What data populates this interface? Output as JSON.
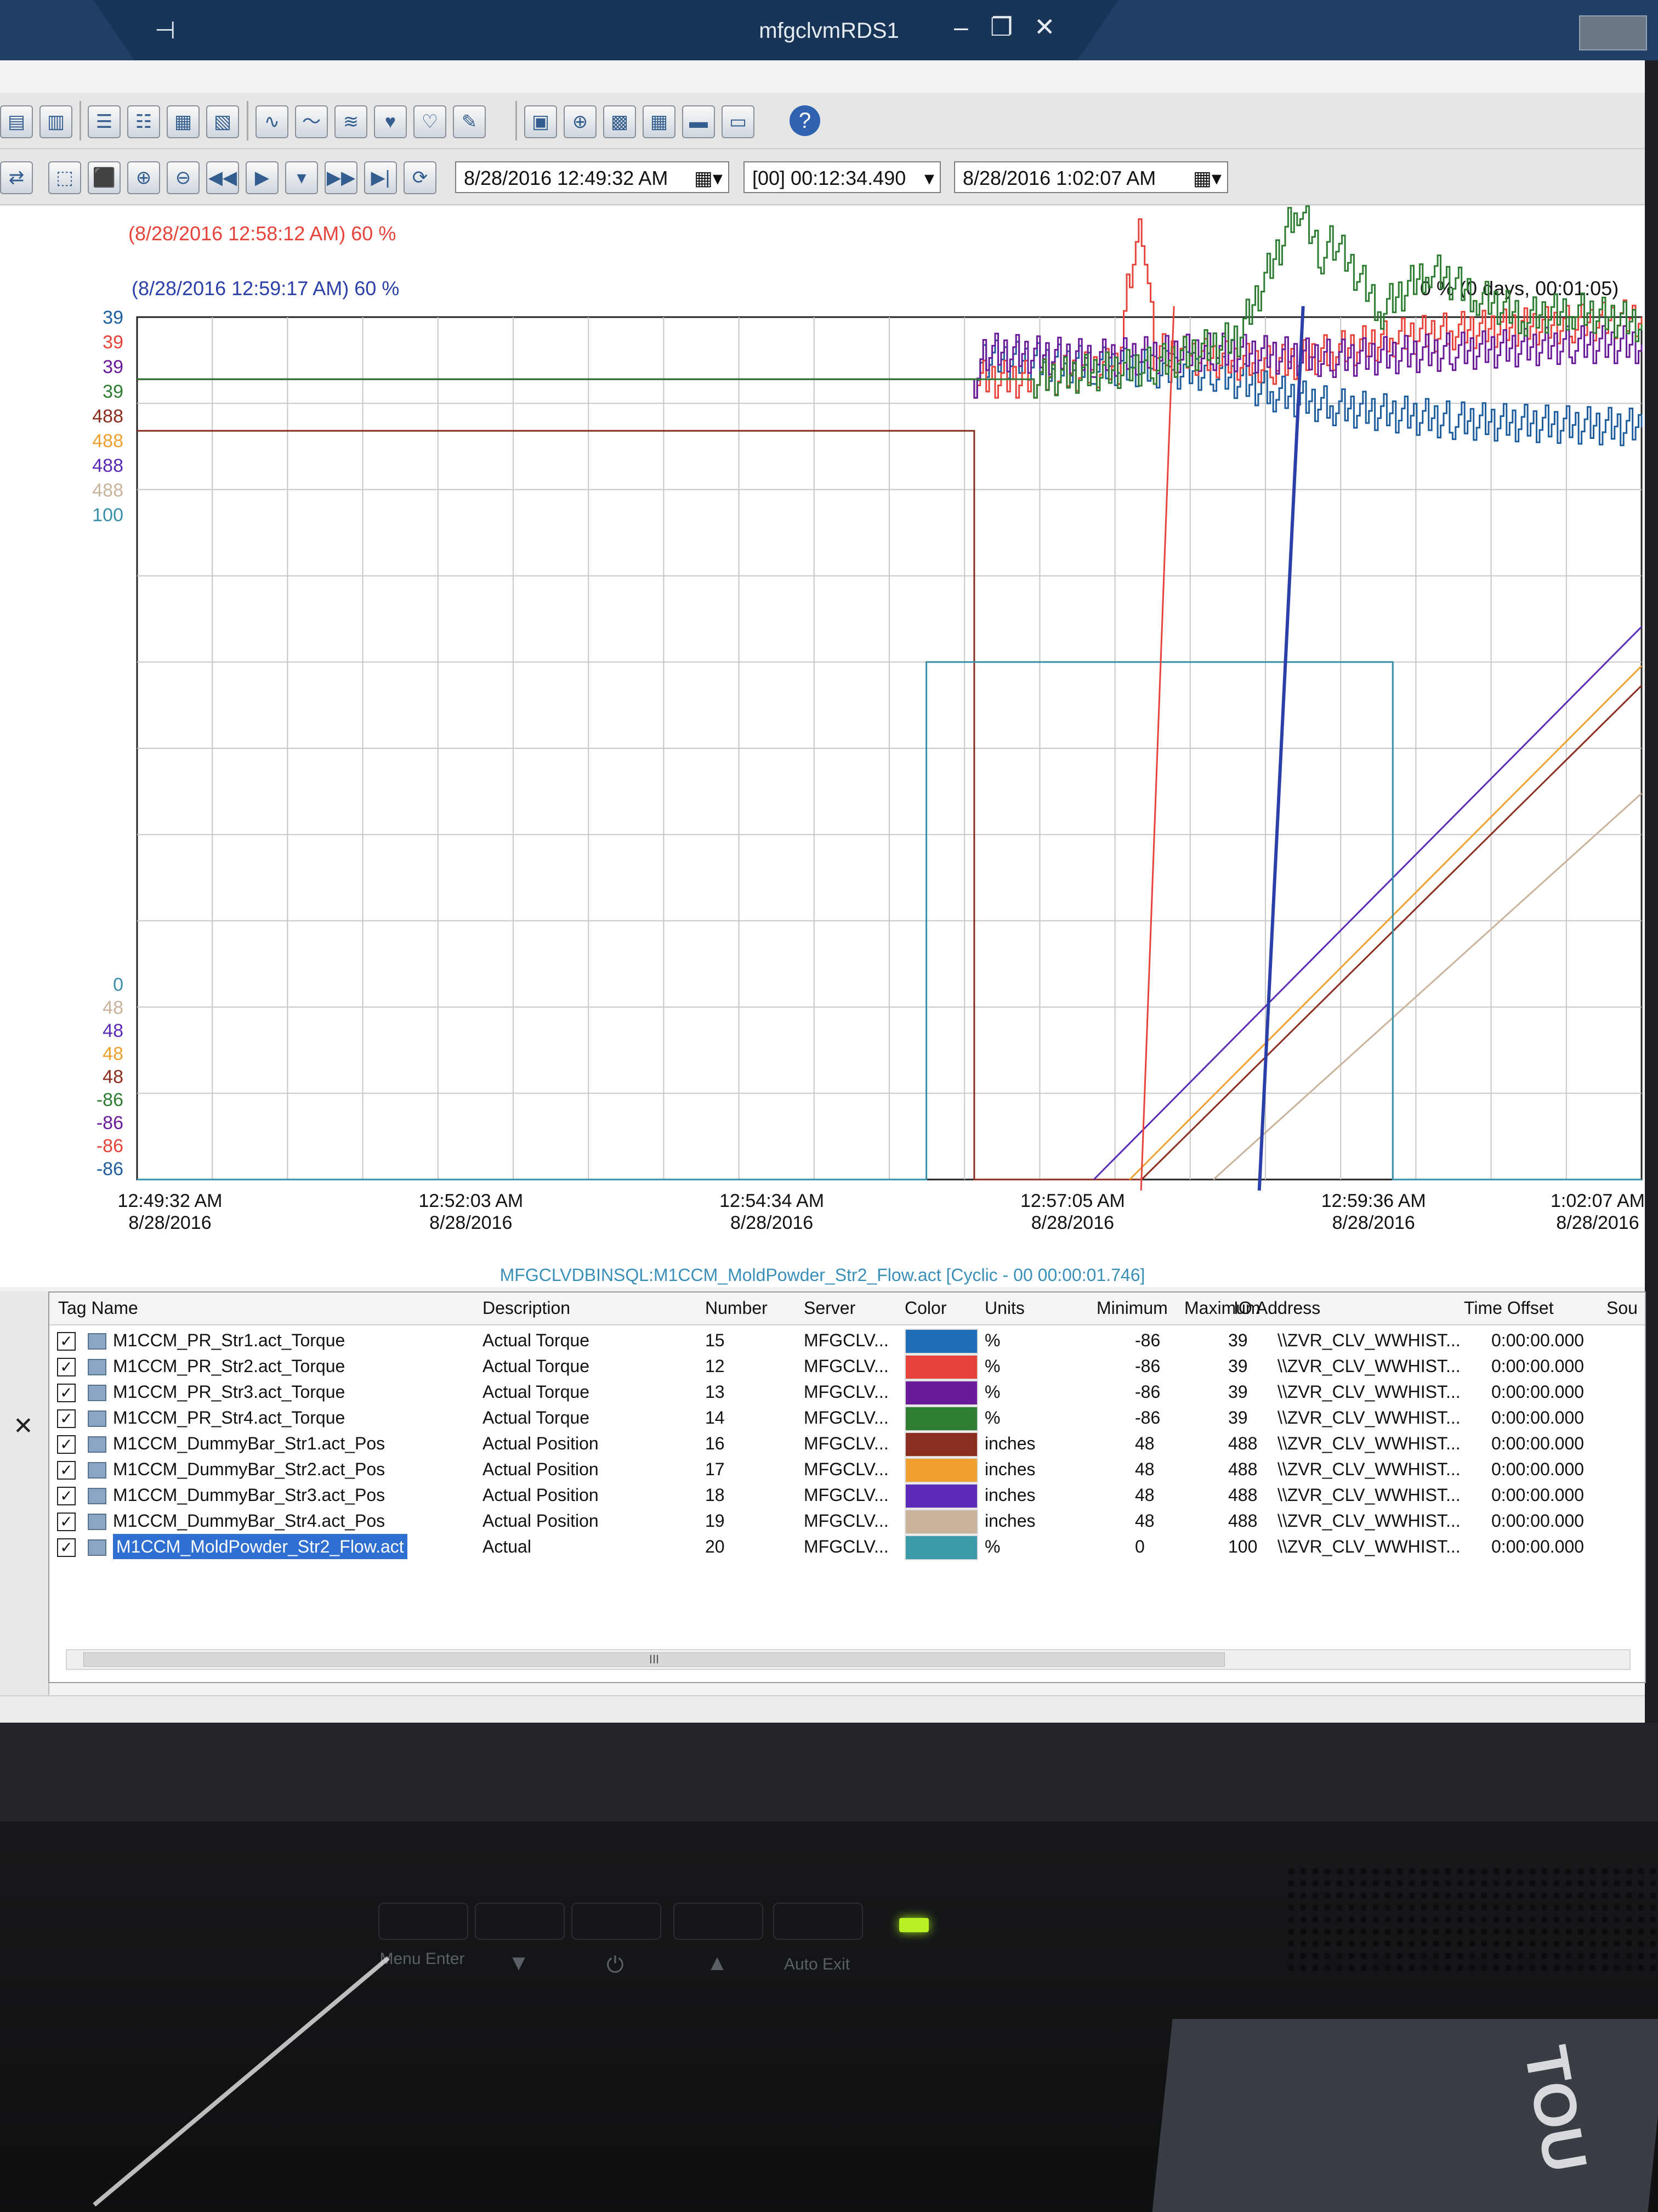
{
  "window": {
    "title": "mfgclvmRDS1",
    "pin_glyph": "⊣",
    "minimize_glyph": "–",
    "restore_glyph": "❐",
    "close_glyph": "✕"
  },
  "toolbar": {
    "start_time": "8/28/2016 12:49:32 AM",
    "duration": "[00] 00:12:34.490",
    "end_time": "8/28/2016 1:02:07 AM",
    "help_label": "?"
  },
  "cursors": {
    "cursor1_label": "(8/28/2016 12:58:12 AM) 60 %",
    "cursor1_color": "#e8433a",
    "cursor2_label": "(8/28/2016 12:59:17 AM) 60 %",
    "cursor2_color": "#2b3fa8",
    "delta_label": "0 % (0 days, 00:01:05)"
  },
  "chart_data": {
    "type": "line",
    "title": "",
    "selected_tag_caption": "MFGCLVDBINSQL:M1CCM_MoldPowder_Str2_Flow.act [Cyclic - 00 00:00:01.746]",
    "y_axis_top_labels": [
      {
        "text": "39",
        "color": "#1f5e9e"
      },
      {
        "text": "39",
        "color": "#e8433a"
      },
      {
        "text": "39",
        "color": "#6a1b9a"
      },
      {
        "text": "39",
        "color": "#2e7d32"
      },
      {
        "text": "488",
        "color": "#8b2d1f"
      },
      {
        "text": "488",
        "color": "#f0a030"
      },
      {
        "text": "488",
        "color": "#5b2bb8"
      },
      {
        "text": "488",
        "color": "#c9b39b"
      },
      {
        "text": "100",
        "color": "#3a8fa8"
      }
    ],
    "y_axis_bottom_labels": [
      {
        "text": "0",
        "color": "#3a8fa8"
      },
      {
        "text": "48",
        "color": "#c9b39b"
      },
      {
        "text": "48",
        "color": "#5b2bb8"
      },
      {
        "text": "48",
        "color": "#f0a030"
      },
      {
        "text": "48",
        "color": "#8b2d1f"
      },
      {
        "text": "-86",
        "color": "#2e7d32"
      },
      {
        "text": "-86",
        "color": "#6a1b9a"
      },
      {
        "text": "-86",
        "color": "#e8433a"
      },
      {
        "text": "-86",
        "color": "#1f5e9e"
      }
    ],
    "x_ticks": [
      {
        "time": "12:49:32 AM",
        "date": "8/28/2016"
      },
      {
        "time": "12:52:03 AM",
        "date": "8/28/2016"
      },
      {
        "time": "12:54:34 AM",
        "date": "8/28/2016"
      },
      {
        "time": "12:57:05 AM",
        "date": "8/28/2016"
      },
      {
        "time": "12:59:36 AM",
        "date": "8/28/2016"
      },
      {
        "time": "1:02:07 AM",
        "date": "8/28/2016"
      }
    ],
    "x_range_minutes": [
      0,
      12.58
    ],
    "cursor_times_minutes": [
      8.67,
      9.75
    ],
    "grid": true,
    "series": [
      {
        "name": "M1CCM_PR_Str1.act_Torque",
        "color": "#1f5e9e",
        "kind": "torque_low",
        "points": [
          [
            0,
            30
          ],
          [
            7.0,
            30
          ],
          [
            7.1,
            33
          ],
          [
            8.0,
            32
          ],
          [
            9.0,
            31
          ],
          [
            9.5,
            28
          ],
          [
            10.0,
            26
          ],
          [
            11.0,
            24
          ],
          [
            12.58,
            23
          ]
        ]
      },
      {
        "name": "M1CCM_PR_Str2.act_Torque",
        "color": "#e8433a",
        "kind": "torque_red",
        "points": [
          [
            0,
            30
          ],
          [
            7.0,
            30
          ],
          [
            7.5,
            30
          ],
          [
            8.2,
            32
          ],
          [
            8.3,
            46
          ],
          [
            8.4,
            52
          ],
          [
            8.5,
            34
          ],
          [
            9.5,
            32
          ],
          [
            10.0,
            34
          ],
          [
            10.5,
            36
          ],
          [
            11.0,
            37
          ],
          [
            12.0,
            38
          ],
          [
            12.58,
            39
          ]
        ]
      },
      {
        "name": "M1CCM_PR_Str3.act_Torque",
        "color": "#6a1b9a",
        "kind": "torque_mid",
        "points": [
          [
            0,
            30
          ],
          [
            7.0,
            30
          ],
          [
            7.1,
            34
          ],
          [
            8.0,
            33
          ],
          [
            9.0,
            34
          ],
          [
            10.0,
            33
          ],
          [
            11.0,
            34
          ],
          [
            12.0,
            35
          ],
          [
            12.58,
            35
          ]
        ]
      },
      {
        "name": "M1CCM_PR_Str4.act_Torque",
        "color": "#2e7d32",
        "kind": "torque_green",
        "points": [
          [
            0,
            30
          ],
          [
            7.5,
            30
          ],
          [
            8.5,
            32
          ],
          [
            9.2,
            36
          ],
          [
            9.7,
            55
          ],
          [
            9.9,
            48
          ],
          [
            10.0,
            50
          ],
          [
            10.4,
            40
          ],
          [
            10.8,
            46
          ],
          [
            11.2,
            42
          ],
          [
            11.6,
            39
          ],
          [
            12.0,
            40
          ],
          [
            12.58,
            38
          ]
        ]
      },
      {
        "name": "M1CCM_DummyBar_Str1.act_Pos",
        "color": "#8b2d1f",
        "kind": "ramp",
        "points": [
          [
            0,
            430
          ],
          [
            7.0,
            430
          ],
          [
            7.0,
            48
          ],
          [
            8.4,
            48
          ],
          [
            12.58,
            300
          ]
        ]
      },
      {
        "name": "M1CCM_DummyBar_Str2.act_Pos",
        "color": "#f0a030",
        "kind": "ramp",
        "points": [
          [
            8.3,
            48
          ],
          [
            12.58,
            310
          ]
        ]
      },
      {
        "name": "M1CCM_DummyBar_Str3.act_Pos",
        "color": "#5b2bb8",
        "kind": "ramp",
        "points": [
          [
            8.0,
            48
          ],
          [
            12.58,
            330
          ]
        ]
      },
      {
        "name": "M1CCM_DummyBar_Str4.act_Pos",
        "color": "#c9b39b",
        "kind": "ramp",
        "points": [
          [
            9.0,
            48
          ],
          [
            12.58,
            245
          ]
        ]
      },
      {
        "name": "M1CCM_MoldPowder_Str2_Flow.act",
        "color": "#3a8fa8",
        "kind": "flow",
        "points": [
          [
            0,
            0
          ],
          [
            6.5,
            0
          ],
          [
            6.6,
            60
          ],
          [
            10.4,
            60
          ],
          [
            10.5,
            0
          ],
          [
            12.58,
            0
          ]
        ]
      }
    ]
  },
  "tag_grid": {
    "headers": [
      "Tag Name",
      "Description",
      "Number",
      "Server",
      "Color",
      "Units",
      "Minimum",
      "Maximum",
      "IO Address",
      "Time Offset",
      "Sou"
    ],
    "rows": [
      {
        "tag": "M1CCM_PR_Str1.act_Torque",
        "desc": "Actual Torque",
        "num": "15",
        "server": "MFGCLV...",
        "color": "#1f6fb8",
        "units": "%",
        "min": "-86",
        "max": "39",
        "io": "\\\\ZVR_CLV_WWHIST...",
        "offset": "0:00:00.000"
      },
      {
        "tag": "M1CCM_PR_Str2.act_Torque",
        "desc": "Actual Torque",
        "num": "12",
        "server": "MFGCLV...",
        "color": "#e8433a",
        "units": "%",
        "min": "-86",
        "max": "39",
        "io": "\\\\ZVR_CLV_WWHIST...",
        "offset": "0:00:00.000"
      },
      {
        "tag": "M1CCM_PR_Str3.act_Torque",
        "desc": "Actual Torque",
        "num": "13",
        "server": "MFGCLV...",
        "color": "#6a1b9a",
        "units": "%",
        "min": "-86",
        "max": "39",
        "io": "\\\\ZVR_CLV_WWHIST...",
        "offset": "0:00:00.000"
      },
      {
        "tag": "M1CCM_PR_Str4.act_Torque",
        "desc": "Actual Torque",
        "num": "14",
        "server": "MFGCLV...",
        "color": "#2e7d32",
        "units": "%",
        "min": "-86",
        "max": "39",
        "io": "\\\\ZVR_CLV_WWHIST...",
        "offset": "0:00:00.000"
      },
      {
        "tag": "M1CCM_DummyBar_Str1.act_Pos",
        "desc": "Actual Position",
        "num": "16",
        "server": "MFGCLV...",
        "color": "#8b2d1f",
        "units": "inches",
        "min": "48",
        "max": "488",
        "io": "\\\\ZVR_CLV_WWHIST...",
        "offset": "0:00:00.000"
      },
      {
        "tag": "M1CCM_DummyBar_Str2.act_Pos",
        "desc": "Actual Position",
        "num": "17",
        "server": "MFGCLV...",
        "color": "#f0a030",
        "units": "inches",
        "min": "48",
        "max": "488",
        "io": "\\\\ZVR_CLV_WWHIST...",
        "offset": "0:00:00.000"
      },
      {
        "tag": "M1CCM_DummyBar_Str3.act_Pos",
        "desc": "Actual Position",
        "num": "18",
        "server": "MFGCLV...",
        "color": "#5b2bb8",
        "units": "inches",
        "min": "48",
        "max": "488",
        "io": "\\\\ZVR_CLV_WWHIST...",
        "offset": "0:00:00.000"
      },
      {
        "tag": "M1CCM_DummyBar_Str4.act_Pos",
        "desc": "Actual Position",
        "num": "19",
        "server": "MFGCLV...",
        "color": "#c9b39b",
        "units": "inches",
        "min": "48",
        "max": "488",
        "io": "\\\\ZVR_CLV_WWHIST...",
        "offset": "0:00:00.000"
      },
      {
        "tag": "M1CCM_MoldPowder_Str2_Flow.act",
        "desc": "Actual",
        "num": "20",
        "server": "MFGCLV...",
        "color": "#3a9aa8",
        "units": "%",
        "min": "0",
        "max": "100",
        "io": "\\\\ZVR_CLV_WWHIST...",
        "offset": "0:00:00.000",
        "selected": true
      }
    ],
    "scroll_grip": "III"
  },
  "monitor": {
    "btn1_label": "Menu Enter",
    "btn2_glyph": "▼",
    "btn3_glyph": "⏻",
    "btn4_glyph": "▲",
    "btn5_label": "Auto Exit",
    "book_text": "TOU"
  }
}
